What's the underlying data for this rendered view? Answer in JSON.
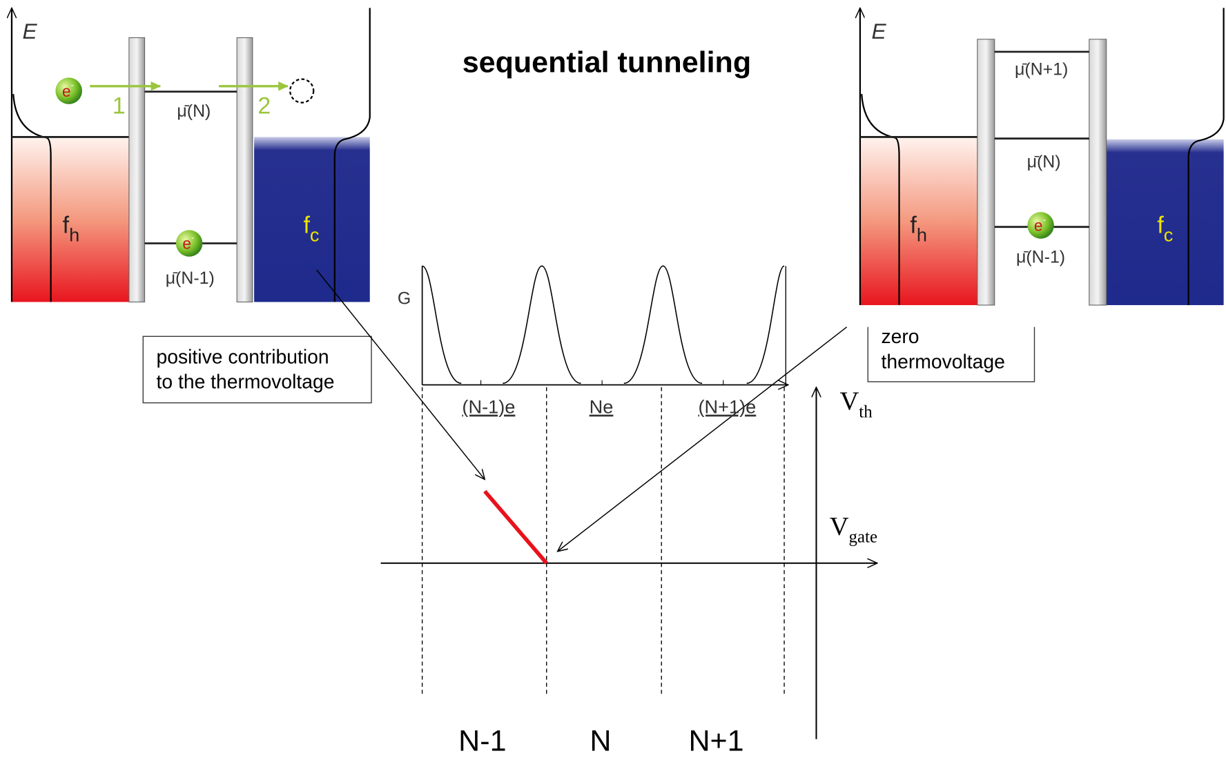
{
  "title": "sequential tunneling",
  "left_panel": {
    "axis_label": "E",
    "electron_in": {
      "base": "e",
      "sup": "-"
    },
    "step_1": "1",
    "step_2": "2",
    "level_upper": "μ̄(N)",
    "level_lower": "μ̄(N-1)",
    "electron_dot": {
      "base": "e",
      "sup": "-"
    },
    "hot_label": {
      "base": "f",
      "sub": "h"
    },
    "cold_label": {
      "base": "f",
      "sub": "c"
    }
  },
  "right_panel": {
    "axis_label": "E",
    "level_top": "μ̄(N+1)",
    "level_middle": "μ̄(N)",
    "level_lower": "μ̄(N-1)",
    "electron_dot": {
      "base": "e",
      "sup": "-"
    },
    "hot_label": {
      "base": "f",
      "sub": "h"
    },
    "cold_label": {
      "base": "f",
      "sub": "c"
    }
  },
  "annotations": {
    "positive": [
      "positive contribution",
      "to the thermovoltage"
    ],
    "zero": [
      "zero",
      "thermovoltage"
    ]
  },
  "conductance": {
    "axis_label": "G",
    "charge_labels": [
      "(N-1)e",
      "Ne",
      "(N+1)e"
    ]
  },
  "thermovoltage": {
    "y_axis": {
      "base": "V",
      "sub": "th"
    },
    "x_axis": {
      "base": "V",
      "sub": "gate"
    },
    "regions": [
      "N-1",
      "N",
      "N+1"
    ]
  }
}
